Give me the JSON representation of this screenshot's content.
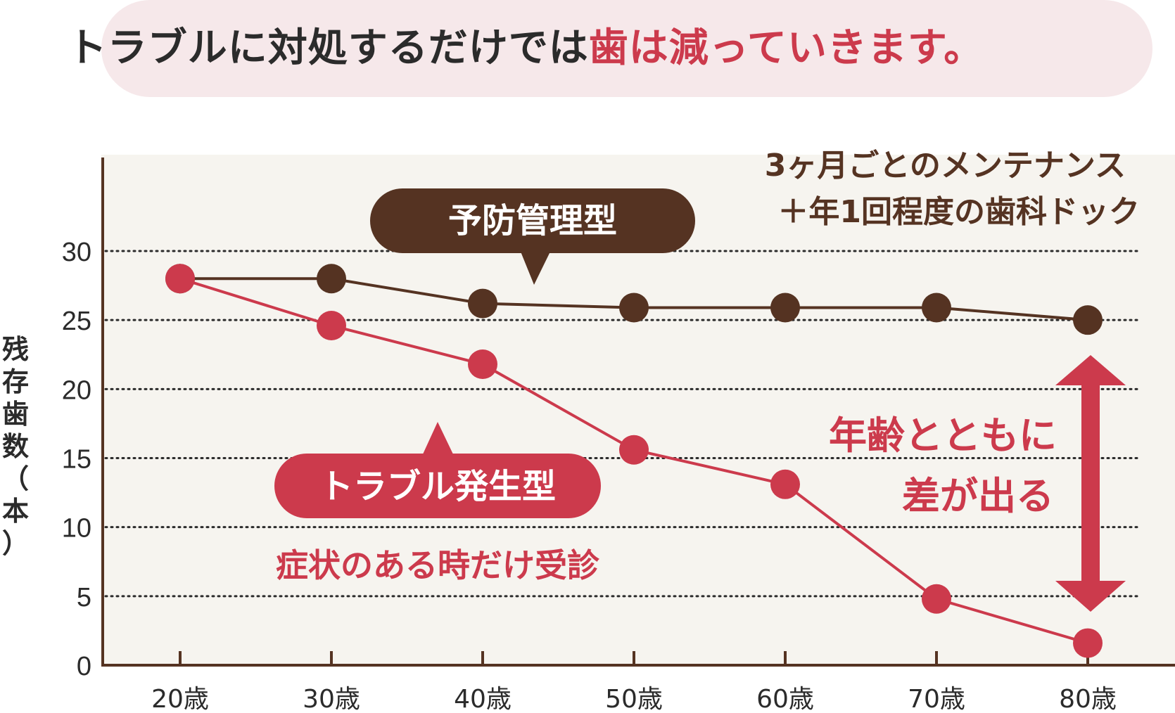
{
  "banner": {
    "text_dark": "トラブルに対処するだけでは",
    "text_highlight": "歯は減っていきます。"
  },
  "colors": {
    "prevent": "#553322",
    "trouble": "#cc3a4c",
    "plot_bg": "#f6f4ef",
    "banner_bg": "#f6e8ea"
  },
  "chart_data": {
    "type": "line",
    "categories": [
      "20歳",
      "30歳",
      "40歳",
      "50歳",
      "60歳",
      "70歳",
      "80歳"
    ],
    "series": [
      {
        "name": "予防管理型",
        "values": [
          28,
          28,
          26.2,
          25.9,
          25.9,
          25.9,
          25
        ]
      },
      {
        "name": "トラブル発生型",
        "values": [
          28,
          24.6,
          21.8,
          15.6,
          13.1,
          4.8,
          1.6
        ]
      }
    ],
    "ylabel": "残存歯数（本）",
    "yticks": [
      0,
      5,
      10,
      15,
      20,
      25,
      30
    ],
    "ylim": [
      0,
      30
    ],
    "grid": "dotted horizontal",
    "annotations": {
      "prevent_label": "予防管理型",
      "prevent_desc_1": "3ヶ月ごとのメンテナンス",
      "prevent_desc_2": "＋年1回程度の歯科ドック",
      "trouble_label": "トラブル発生型",
      "trouble_desc": "症状のある時だけ受診",
      "gap_1": "年齢とともに",
      "gap_2": "差が出る"
    }
  }
}
